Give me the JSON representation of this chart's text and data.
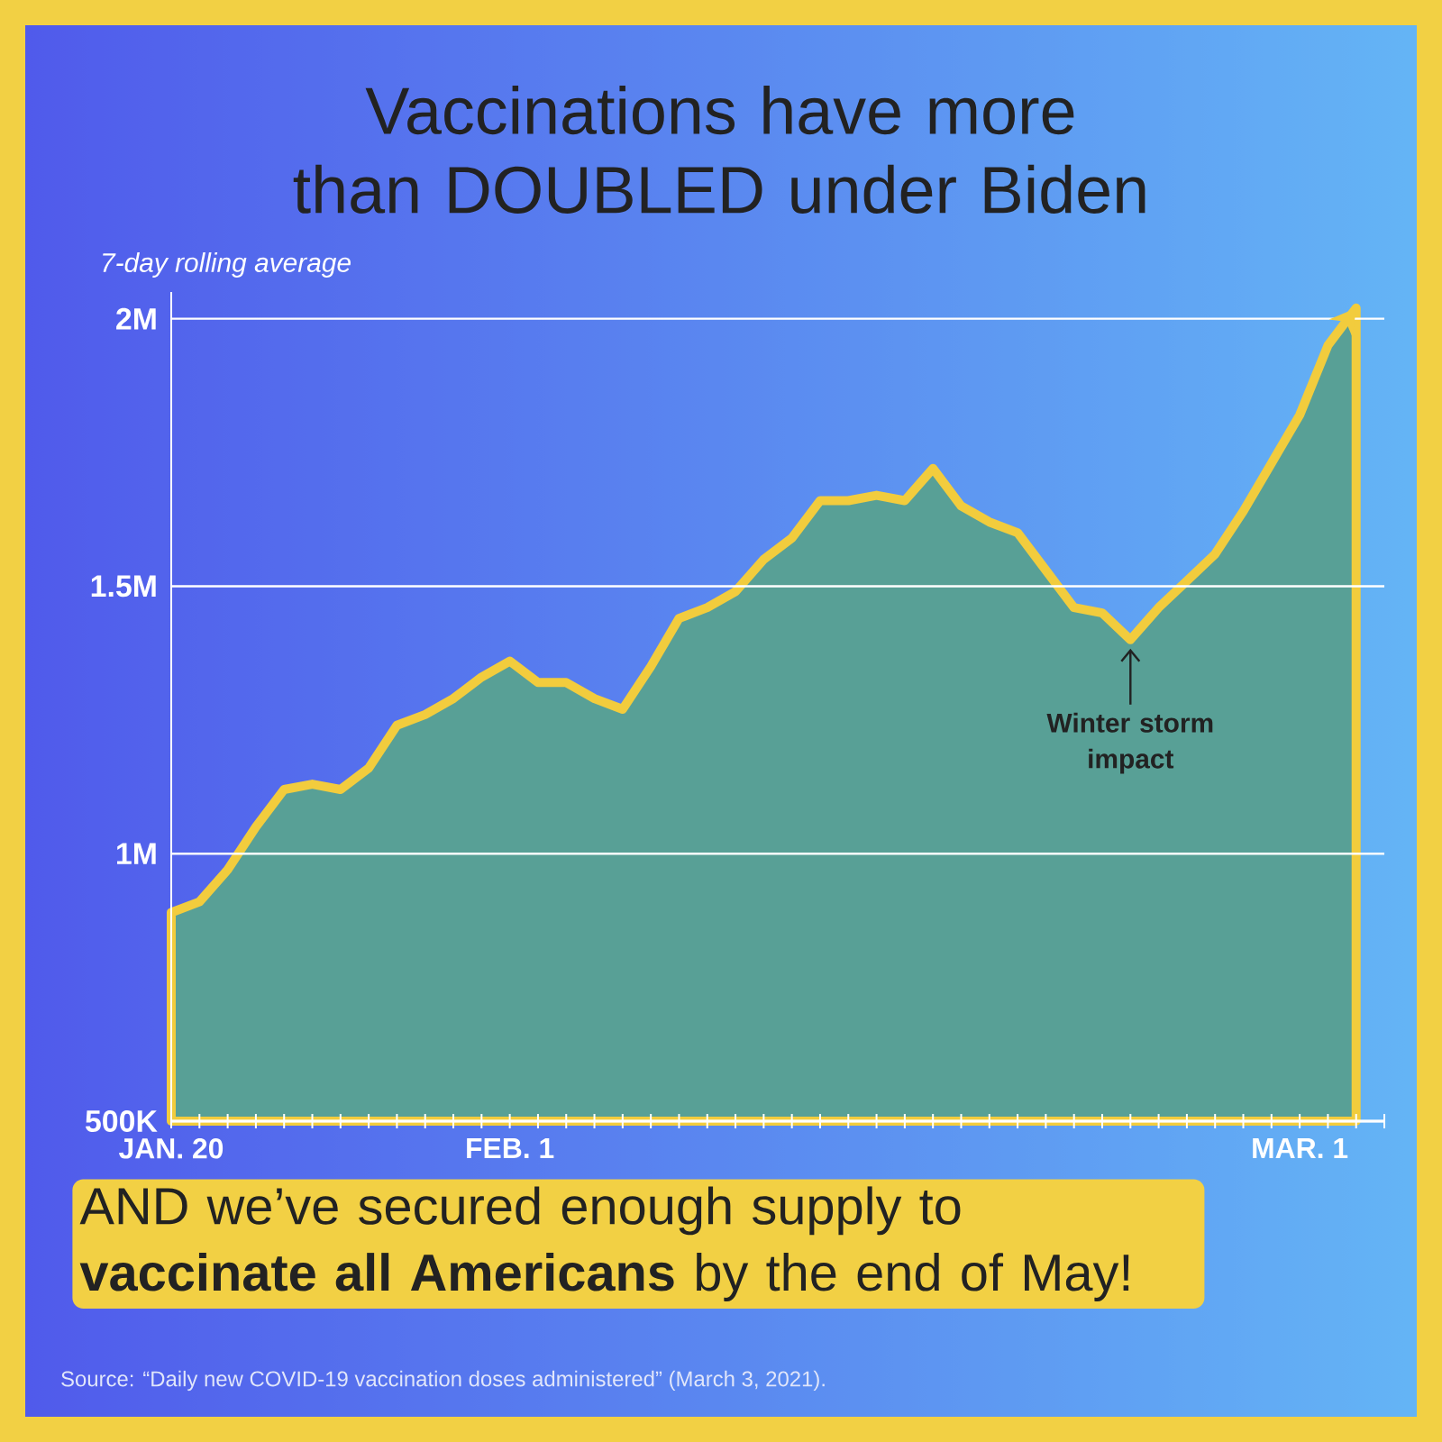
{
  "chart_data": {
    "type": "area",
    "title": "Vaccinations have more than DOUBLED under Biden",
    "subtitle": "7-day rolling average",
    "x": [
      "2021-01-20",
      "2021-01-21",
      "2021-01-22",
      "2021-01-23",
      "2021-01-24",
      "2021-01-25",
      "2021-01-26",
      "2021-01-27",
      "2021-01-28",
      "2021-01-29",
      "2021-01-30",
      "2021-01-31",
      "2021-02-01",
      "2021-02-02",
      "2021-02-03",
      "2021-02-04",
      "2021-02-05",
      "2021-02-06",
      "2021-02-07",
      "2021-02-08",
      "2021-02-09",
      "2021-02-10",
      "2021-02-11",
      "2021-02-12",
      "2021-02-13",
      "2021-02-14",
      "2021-02-15",
      "2021-02-16",
      "2021-02-17",
      "2021-02-18",
      "2021-02-19",
      "2021-02-20",
      "2021-02-21",
      "2021-02-22",
      "2021-02-23",
      "2021-02-24",
      "2021-02-25",
      "2021-02-26",
      "2021-02-27",
      "2021-02-28",
      "2021-03-01",
      "2021-03-02",
      "2021-03-03"
    ],
    "series": [
      {
        "color": "#f2cc3d",
        "values": [
          890000,
          910000,
          970000,
          1050000,
          1120000,
          1130000,
          1120000,
          1160000,
          1240000,
          1260000,
          1290000,
          1330000,
          1360000,
          1320000,
          1320000,
          1290000,
          1270000,
          1350000,
          1440000,
          1460000,
          1490000,
          1550000,
          1590000,
          1660000,
          1660000,
          1670000,
          1660000,
          1720000,
          1650000,
          1620000,
          1600000,
          1530000,
          1460000,
          1450000,
          1400000,
          1460000,
          1510000,
          1560000,
          1640000,
          1730000,
          1820000,
          1950000,
          2020000
        ]
      }
    ],
    "xlim": [
      "2021-01-20",
      "2021-03-04"
    ],
    "xticks": [
      {
        "value": "2021-01-20",
        "label": "JAN. 20"
      },
      {
        "value": "2021-01-21",
        "label": null
      },
      {
        "value": "2021-01-22",
        "label": null
      },
      {
        "value": "2021-01-23",
        "label": null
      },
      {
        "value": "2021-01-24",
        "label": null
      },
      {
        "value": "2021-01-25",
        "label": null
      },
      {
        "value": "2021-01-26",
        "label": null
      },
      {
        "value": "2021-01-27",
        "label": null
      },
      {
        "value": "2021-01-28",
        "label": null
      },
      {
        "value": "2021-01-29",
        "label": null
      },
      {
        "value": "2021-01-30",
        "label": null
      },
      {
        "value": "2021-01-31",
        "label": null
      },
      {
        "value": "2021-02-01",
        "label": "FEB. 1"
      },
      {
        "value": "2021-02-02",
        "label": null
      },
      {
        "value": "2021-02-03",
        "label": null
      },
      {
        "value": "2021-02-04",
        "label": null
      },
      {
        "value": "2021-02-05",
        "label": null
      },
      {
        "value": "2021-02-06",
        "label": null
      },
      {
        "value": "2021-02-07",
        "label": null
      },
      {
        "value": "2021-02-08",
        "label": null
      },
      {
        "value": "2021-02-09",
        "label": null
      },
      {
        "value": "2021-02-10",
        "label": null
      },
      {
        "value": "2021-02-11",
        "label": null
      },
      {
        "value": "2021-02-12",
        "label": null
      },
      {
        "value": "2021-02-13",
        "label": null
      },
      {
        "value": "2021-02-14",
        "label": null
      },
      {
        "value": "2021-02-15",
        "label": null
      },
      {
        "value": "2021-02-16",
        "label": null
      },
      {
        "value": "2021-02-17",
        "label": null
      },
      {
        "value": "2021-02-18",
        "label": null
      },
      {
        "value": "2021-02-19",
        "label": null
      },
      {
        "value": "2021-02-20",
        "label": null
      },
      {
        "value": "2021-02-21",
        "label": null
      },
      {
        "value": "2021-02-22",
        "label": null
      },
      {
        "value": "2021-02-23",
        "label": null
      },
      {
        "value": "2021-02-24",
        "label": null
      },
      {
        "value": "2021-02-25",
        "label": null
      },
      {
        "value": "2021-02-26",
        "label": null
      },
      {
        "value": "2021-02-27",
        "label": null
      },
      {
        "value": "2021-02-28",
        "label": null
      },
      {
        "value": "2021-03-01",
        "label": "MAR. 1"
      },
      {
        "value": "2021-03-02",
        "label": null
      },
      {
        "value": "2021-03-03",
        "label": null
      },
      {
        "value": "2021-03-04",
        "label": null
      }
    ],
    "ylim": [
      500000,
      2050000
    ],
    "yticks": [
      {
        "value": 500000,
        "label": "500K"
      },
      {
        "value": 1000000,
        "label": "1M"
      },
      {
        "value": 1500000,
        "label": "1.5M"
      },
      {
        "value": 2000000,
        "label": "2M"
      }
    ],
    "grid": "y",
    "annotations": [
      {
        "text": "Winter storm impact",
        "x": "2021-02-23",
        "y": 1400000
      },
      "AND we’ve secured enough supply to **vaccinate all Americans** by the end of May!",
      "Source: “Daily new COVID-19 vaccination doses administered” (March 3, 2021)."
    ]
  }
}
